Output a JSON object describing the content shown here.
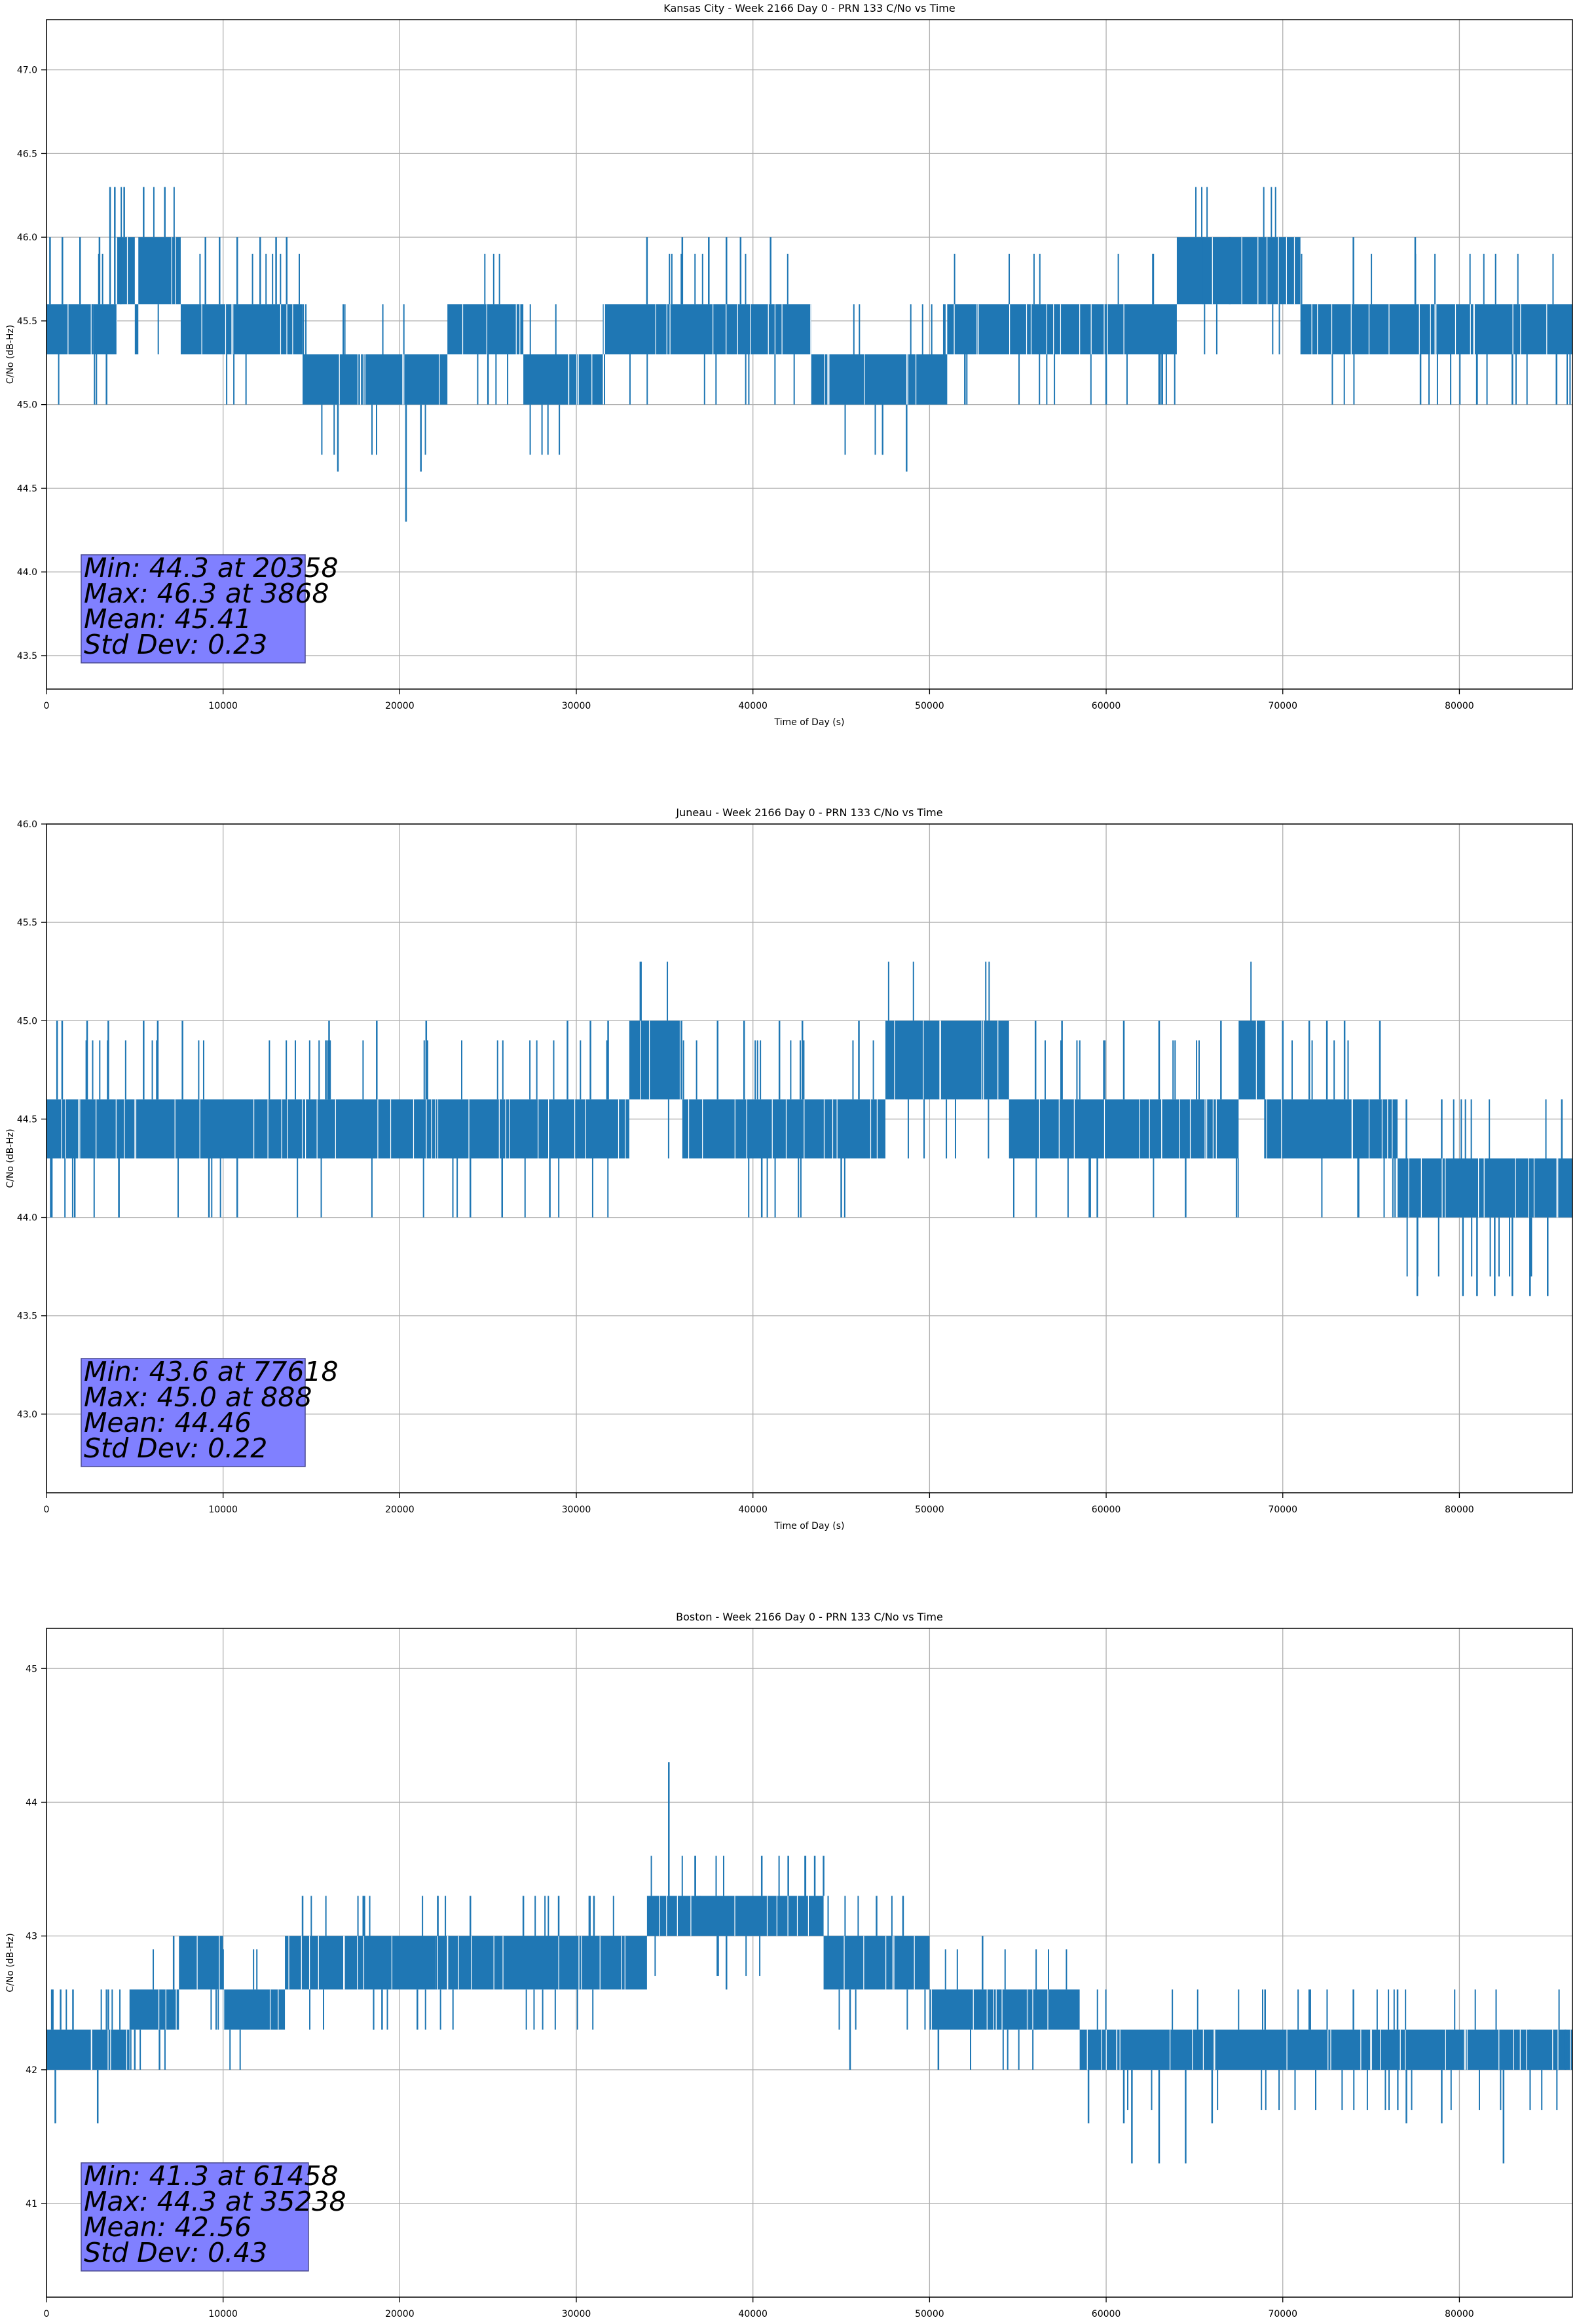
{
  "figure": {
    "style": {
      "line_color": "#1f77b4",
      "grid_color": "#b0b0b0",
      "stats_box_color": "#8080ff"
    }
  },
  "chart_data": [
    {
      "type": "line",
      "title": "Kansas City - Week 2166 Day 0 - PRN 133 C/No vs Time",
      "xlabel": "Time of Day (s)",
      "ylabel": "C/No (dB-Hz)",
      "xlim": [
        0,
        86400
      ],
      "ylim": [
        43.3,
        47.3
      ],
      "grid": true,
      "xticks": [
        0,
        10000,
        20000,
        30000,
        40000,
        50000,
        60000,
        70000,
        80000
      ],
      "xtick_labels": [
        "0",
        "10000",
        "20000",
        "30000",
        "40000",
        "50000",
        "60000",
        "70000",
        "80000"
      ],
      "yticks": [
        43.5,
        44.0,
        44.5,
        45.0,
        45.5,
        46.0,
        46.5,
        47.0
      ],
      "ytick_labels": [
        "43.5",
        "44.0",
        "44.5",
        "45.0",
        "45.5",
        "46.0",
        "46.5",
        "47.0"
      ],
      "stats": [
        "Min: 44.3 at 20358",
        "Max: 46.3 at 3868",
        "Mean: 45.41",
        "Std Dev: 0.23"
      ],
      "series": [
        {
          "bands": [
            {
              "x": [
                0,
                4000
              ],
              "y": [
                45.3,
                45.6
              ]
            },
            {
              "x": [
                4000,
                5000
              ],
              "y": [
                45.6,
                46.0
              ]
            },
            {
              "x": [
                5000,
                5200
              ],
              "y": [
                45.3,
                45.6
              ]
            },
            {
              "x": [
                5200,
                7600
              ],
              "y": [
                45.6,
                46.0
              ]
            },
            {
              "x": [
                7600,
                14500
              ],
              "y": [
                45.3,
                45.6
              ]
            },
            {
              "x": [
                14500,
                22700
              ],
              "y": [
                45.0,
                45.3
              ]
            },
            {
              "x": [
                22700,
                27000
              ],
              "y": [
                45.3,
                45.6
              ]
            },
            {
              "x": [
                27000,
                31500
              ],
              "y": [
                45.0,
                45.3
              ]
            },
            {
              "x": [
                31500,
                43300
              ],
              "y": [
                45.3,
                45.6
              ]
            },
            {
              "x": [
                43300,
                51000
              ],
              "y": [
                45.0,
                45.3
              ]
            },
            {
              "x": [
                51000,
                64000
              ],
              "y": [
                45.3,
                45.6
              ]
            },
            {
              "x": [
                64000,
                71000
              ],
              "y": [
                45.6,
                46.0
              ]
            },
            {
              "x": [
                71000,
                86400
              ],
              "y": [
                45.3,
                45.6
              ]
            }
          ],
          "spikes": [
            [
              200,
              46.0
            ],
            [
              900,
              46.0
            ],
            [
              1900,
              46.0
            ],
            [
              2600,
              45.6
            ],
            [
              3000,
              46.0
            ],
            [
              3400,
              45.0
            ],
            [
              3600,
              46.3
            ],
            [
              3868,
              46.3
            ],
            [
              4200,
              46.0
            ],
            [
              4400,
              46.3
            ],
            [
              5500,
              46.3
            ],
            [
              6700,
              46.3
            ],
            [
              9000,
              46.0
            ],
            [
              9800,
              46.0
            ],
            [
              10800,
              46.0
            ],
            [
              12100,
              46.0
            ],
            [
              13000,
              46.0
            ],
            [
              13600,
              46.0
            ],
            [
              16500,
              44.6
            ],
            [
              20358,
              44.3
            ],
            [
              21200,
              44.6
            ],
            [
              25000,
              45.0
            ],
            [
              28000,
              45.0
            ],
            [
              29500,
              45.0
            ],
            [
              34000,
              46.0
            ],
            [
              36000,
              46.0
            ],
            [
              37500,
              46.0
            ],
            [
              38500,
              46.0
            ],
            [
              39300,
              46.0
            ],
            [
              41000,
              46.0
            ],
            [
              46500,
              45.0
            ],
            [
              48700,
              44.6
            ],
            [
              49500,
              45.0
            ],
            [
              52000,
              45.0
            ],
            [
              60000,
              45.0
            ],
            [
              63000,
              45.0
            ],
            [
              65500,
              46.0
            ],
            [
              67000,
              46.0
            ],
            [
              74000,
              46.0
            ],
            [
              77500,
              46.0
            ],
            [
              77800,
              45.0
            ],
            [
              81000,
              45.0
            ],
            [
              83000,
              45.0
            ],
            [
              85500,
              45.0
            ]
          ]
        }
      ]
    },
    {
      "type": "line",
      "title": "Juneau - Week 2166 Day 0 - PRN 133 C/No vs Time",
      "xlabel": "Time of Day (s)",
      "ylabel": "C/No (dB-Hz)",
      "xlim": [
        0,
        86400
      ],
      "ylim": [
        42.6,
        46.0
      ],
      "grid": true,
      "xticks": [
        0,
        10000,
        20000,
        30000,
        40000,
        50000,
        60000,
        70000,
        80000
      ],
      "xtick_labels": [
        "0",
        "10000",
        "20000",
        "30000",
        "40000",
        "50000",
        "60000",
        "70000",
        "80000"
      ],
      "yticks": [
        43.0,
        43.5,
        44.0,
        44.5,
        45.0,
        45.5,
        46.0
      ],
      "ytick_labels": [
        "43.0",
        "43.5",
        "44.0",
        "44.5",
        "45.0",
        "45.5",
        "46.0"
      ],
      "stats": [
        "Min: 43.6 at 77618",
        "Max: 45.0 at 888",
        "Mean: 44.46",
        "Std Dev: 0.22"
      ],
      "series": [
        {
          "bands": [
            {
              "x": [
                0,
                33000
              ],
              "y": [
                44.3,
                44.6
              ]
            },
            {
              "x": [
                33000,
                36000
              ],
              "y": [
                44.6,
                45.0
              ]
            },
            {
              "x": [
                36000,
                47500
              ],
              "y": [
                44.3,
                44.6
              ]
            },
            {
              "x": [
                47500,
                54500
              ],
              "y": [
                44.6,
                45.0
              ]
            },
            {
              "x": [
                54500,
                67500
              ],
              "y": [
                44.3,
                44.6
              ]
            },
            {
              "x": [
                67500,
                69000
              ],
              "y": [
                44.6,
                45.0
              ]
            },
            {
              "x": [
                69000,
                76500
              ],
              "y": [
                44.3,
                44.6
              ]
            },
            {
              "x": [
                76500,
                86400
              ],
              "y": [
                44.0,
                44.3
              ]
            }
          ],
          "spikes": [
            [
              300,
              44.0
            ],
            [
              600,
              45.0
            ],
            [
              888,
              45.0
            ],
            [
              1600,
              44.0
            ],
            [
              2300,
              45.0
            ],
            [
              3500,
              45.0
            ],
            [
              4100,
              44.0
            ],
            [
              5500,
              45.0
            ],
            [
              6300,
              45.0
            ],
            [
              7700,
              45.0
            ],
            [
              9200,
              44.0
            ],
            [
              10800,
              44.0
            ],
            [
              16000,
              45.0
            ],
            [
              18700,
              45.0
            ],
            [
              21500,
              45.0
            ],
            [
              24000,
              44.0
            ],
            [
              25800,
              44.0
            ],
            [
              28500,
              44.0
            ],
            [
              29500,
              45.0
            ],
            [
              30800,
              45.0
            ],
            [
              31800,
              45.0
            ],
            [
              38000,
              45.0
            ],
            [
              39500,
              45.0
            ],
            [
              40500,
              44.0
            ],
            [
              41500,
              45.0
            ],
            [
              42800,
              45.0
            ],
            [
              45000,
              44.0
            ],
            [
              46000,
              45.0
            ],
            [
              56000,
              45.0
            ],
            [
              57500,
              45.0
            ],
            [
              59500,
              44.0
            ],
            [
              61000,
              45.0
            ],
            [
              63000,
              45.0
            ],
            [
              64500,
              44.0
            ],
            [
              66500,
              45.0
            ],
            [
              70000,
              45.0
            ],
            [
              71500,
              45.0
            ],
            [
              72500,
              45.0
            ],
            [
              73500,
              45.0
            ],
            [
              75500,
              45.0
            ],
            [
              77000,
              44.6
            ],
            [
              77618,
              43.6
            ],
            [
              79000,
              44.6
            ],
            [
              80200,
              43.6
            ],
            [
              81000,
              43.6
            ],
            [
              82000,
              43.6
            ],
            [
              83000,
              43.6
            ],
            [
              84000,
              43.6
            ],
            [
              85000,
              43.6
            ],
            [
              85800,
              44.6
            ]
          ]
        }
      ]
    },
    {
      "type": "line",
      "title": "Boston - Week 2166 Day 0 - PRN 133 C/No vs Time",
      "xlabel": "Time of Day (s)",
      "ylabel": "C/No (dB-Hz)",
      "xlim": [
        0,
        86400
      ],
      "ylim": [
        40.3,
        45.3
      ],
      "grid": true,
      "xticks": [
        0,
        10000,
        20000,
        30000,
        40000,
        50000,
        60000,
        70000,
        80000
      ],
      "xtick_labels": [
        "0",
        "10000",
        "20000",
        "30000",
        "40000",
        "50000",
        "60000",
        "70000",
        "80000"
      ],
      "yticks": [
        41,
        42,
        43,
        44,
        45
      ],
      "ytick_labels": [
        "41",
        "42",
        "43",
        "44",
        "45"
      ],
      "stats": [
        "Min: 41.3 at 61458",
        "Max: 44.3 at 35238",
        "Mean: 42.56",
        "Std Dev: 0.43"
      ],
      "series": [
        {
          "bands": [
            {
              "x": [
                0,
                4700
              ],
              "y": [
                42.0,
                42.3
              ]
            },
            {
              "x": [
                4700,
                7500
              ],
              "y": [
                42.3,
                42.6
              ]
            },
            {
              "x": [
                7500,
                10000
              ],
              "y": [
                42.6,
                43.0
              ]
            },
            {
              "x": [
                10000,
                13500
              ],
              "y": [
                42.3,
                42.6
              ]
            },
            {
              "x": [
                13500,
                22000
              ],
              "y": [
                42.6,
                43.0
              ]
            },
            {
              "x": [
                22000,
                34000
              ],
              "y": [
                42.6,
                43.0
              ]
            },
            {
              "x": [
                34000,
                44000
              ],
              "y": [
                43.0,
                43.3
              ]
            },
            {
              "x": [
                44000,
                50000
              ],
              "y": [
                42.6,
                43.0
              ]
            },
            {
              "x": [
                50000,
                55500
              ],
              "y": [
                42.3,
                42.6
              ]
            },
            {
              "x": [
                55500,
                58500
              ],
              "y": [
                42.3,
                42.6
              ]
            },
            {
              "x": [
                58500,
                86400
              ],
              "y": [
                42.0,
                42.3
              ]
            }
          ],
          "spikes": [
            [
              300,
              42.6
            ],
            [
              500,
              41.6
            ],
            [
              800,
              42.6
            ],
            [
              1500,
              42.6
            ],
            [
              2900,
              41.6
            ],
            [
              3500,
              42.6
            ],
            [
              5000,
              42.0
            ],
            [
              6400,
              42.0
            ],
            [
              7200,
              43.0
            ],
            [
              10500,
              42.3
            ],
            [
              14500,
              43.3
            ],
            [
              18000,
              43.3
            ],
            [
              19000,
              42.3
            ],
            [
              21000,
              42.3
            ],
            [
              24000,
              43.3
            ],
            [
              27000,
              43.3
            ],
            [
              29000,
              43.3
            ],
            [
              31000,
              43.3
            ],
            [
              33000,
              42.6
            ],
            [
              35238,
              44.3
            ],
            [
              37000,
              43.3
            ],
            [
              38500,
              42.6
            ],
            [
              40500,
              43.6
            ],
            [
              42000,
              43.6
            ],
            [
              43500,
              43.6
            ],
            [
              44000,
              43.6
            ],
            [
              45500,
              42.0
            ],
            [
              47000,
              43.3
            ],
            [
              48500,
              43.3
            ],
            [
              50500,
              42.0
            ],
            [
              53000,
              43.0
            ],
            [
              56000,
              42.6
            ],
            [
              59000,
              41.6
            ],
            [
              61000,
              41.6
            ],
            [
              61458,
              41.3
            ],
            [
              63000,
              41.3
            ],
            [
              64500,
              41.3
            ],
            [
              66000,
              41.6
            ],
            [
              69000,
              42.6
            ],
            [
              71500,
              42.6
            ],
            [
              74000,
              42.6
            ],
            [
              76500,
              42.6
            ],
            [
              77000,
              41.6
            ],
            [
              79000,
              41.6
            ],
            [
              82500,
              41.3
            ],
            [
              84000,
              42.3
            ],
            [
              86000,
              42.3
            ]
          ]
        }
      ]
    }
  ]
}
